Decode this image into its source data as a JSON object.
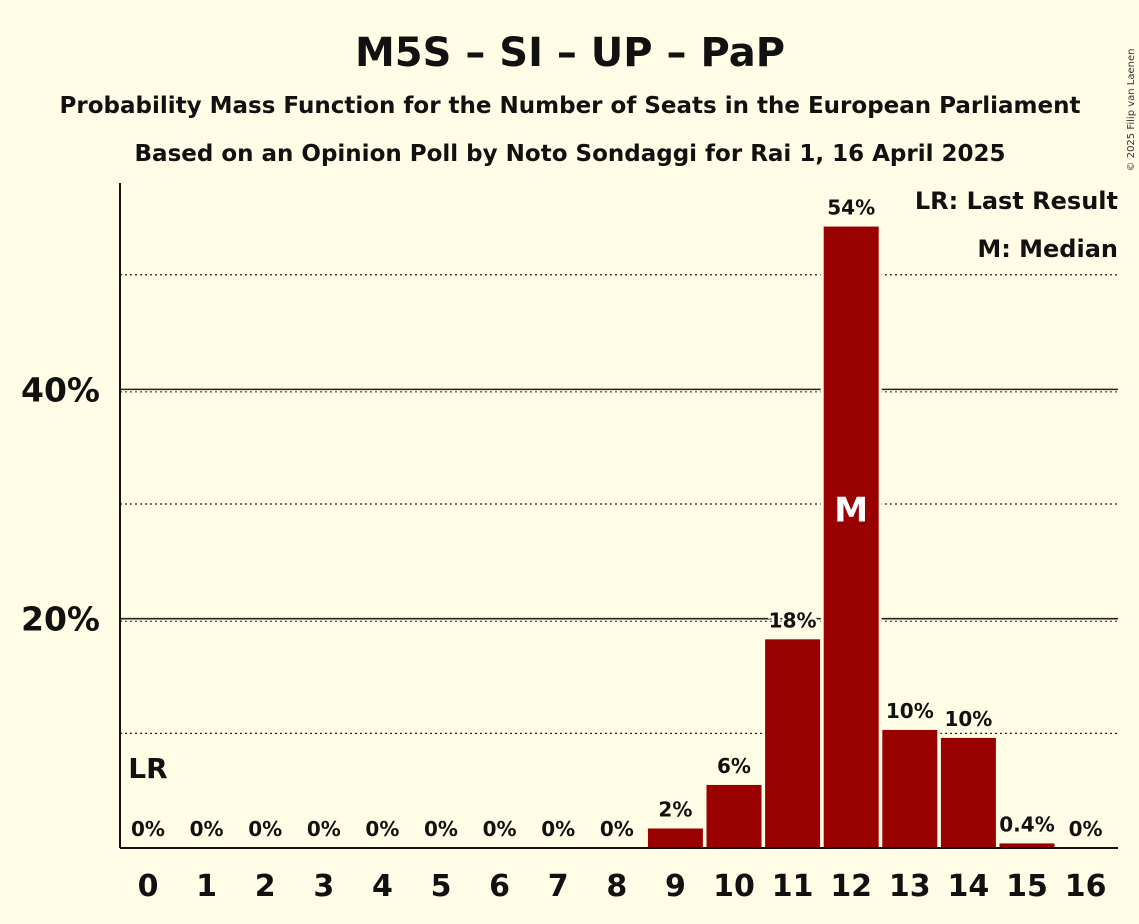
{
  "chart_data": {
    "type": "bar",
    "title": "M5S – SI – UP – PaP",
    "subtitle_1": "Probability Mass Function for the Number of Seats in the European Parliament",
    "subtitle_2": "Based on an Opinion Poll by Noto Sondaggi for Rai 1, 16 April 2025",
    "copyright": "© 2025 Filip van Laenen",
    "categories": [
      "0",
      "1",
      "2",
      "3",
      "4",
      "5",
      "6",
      "7",
      "8",
      "9",
      "10",
      "11",
      "12",
      "13",
      "14",
      "15",
      "16"
    ],
    "values": [
      0,
      0,
      0,
      0,
      0,
      0,
      0,
      0,
      0,
      1.7,
      5.5,
      18.2,
      54.2,
      10.3,
      9.6,
      0.4,
      0
    ],
    "data_labels": [
      "0%",
      "0%",
      "0%",
      "0%",
      "0%",
      "0%",
      "0%",
      "0%",
      "0%",
      "2%",
      "6%",
      "18%",
      "54%",
      "10%",
      "10%",
      "0.4%",
      "0%"
    ],
    "ylim": [
      0,
      58
    ],
    "yticks": [
      {
        "value": 20,
        "label": "20%"
      },
      {
        "value": 40,
        "label": "40%"
      }
    ],
    "minor_gridlines": [
      10,
      30,
      50
    ],
    "last_result_index": 0,
    "last_result_marker": "LR",
    "median_index": 12,
    "median_marker": "M",
    "legend": {
      "position": "top-right",
      "last_result": "LR: Last Result",
      "median": "M: Median"
    },
    "bar_color": "#990000",
    "background_color": "#fffde6"
  }
}
